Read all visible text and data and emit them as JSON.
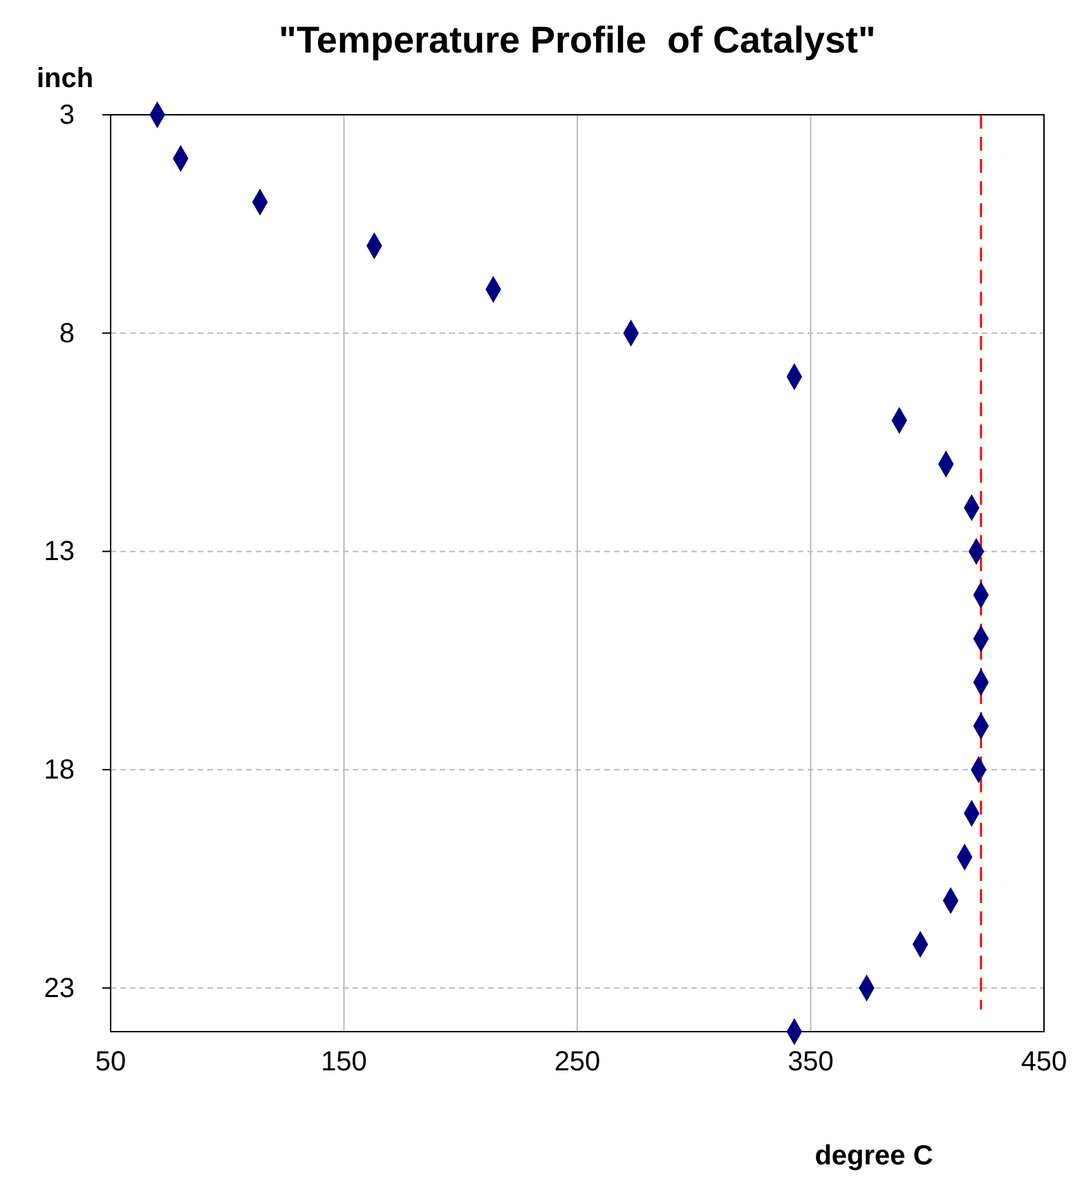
{
  "chart_data": {
    "type": "scatter",
    "title": "\"Temperature Profile  of Catalyst\"",
    "xlabel": "degree C",
    "ylabel": "inch",
    "x": [
      70,
      80,
      114,
      163,
      214,
      273,
      343,
      388,
      408,
      419,
      421,
      423,
      423,
      423,
      423,
      422,
      419,
      416,
      410,
      397,
      374,
      343
    ],
    "series": [
      {
        "color": "#000080",
        "values": [
          3,
          4,
          5,
          6,
          7,
          8,
          9,
          10,
          11,
          12,
          13,
          14,
          15,
          16,
          17,
          18,
          19,
          20,
          21,
          22,
          23,
          24
        ]
      }
    ],
    "marker": "diamond",
    "xlim": [
      50,
      450
    ],
    "xticks": [
      50,
      150,
      250,
      350,
      450
    ],
    "ylim": [
      24,
      3
    ],
    "yticks": [
      3,
      8,
      13,
      18,
      23
    ],
    "grid": true,
    "ref_lines": [
      {
        "axis": "x",
        "value": 423,
        "color": "#ff0000",
        "line_style": "dashed"
      }
    ]
  }
}
